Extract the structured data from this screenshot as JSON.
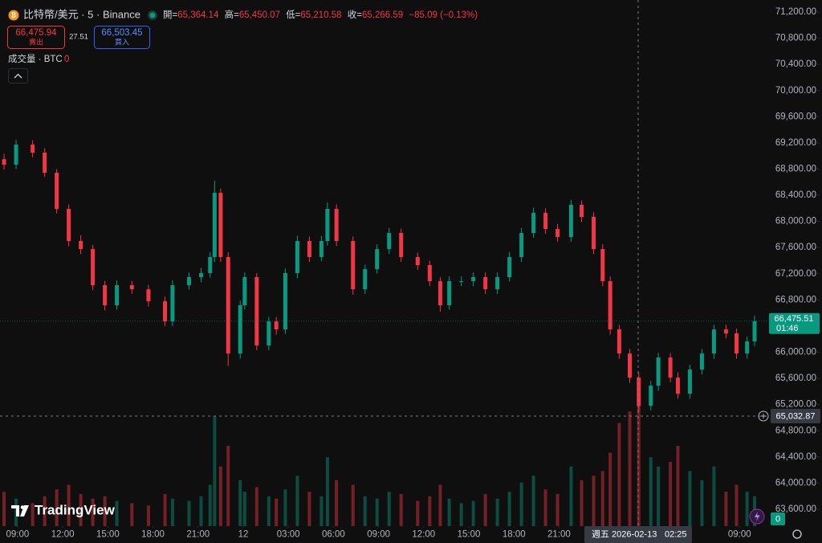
{
  "header": {
    "symbol": "比特幣/美元 · 5 · Binance",
    "ohlc": [
      {
        "label": "開=",
        "value": "65,364.14"
      },
      {
        "label": "高=",
        "value": "65,450.07"
      },
      {
        "label": "低=",
        "value": "65,210.58"
      },
      {
        "label": "收=",
        "value": "65,266.59"
      }
    ],
    "change": "−85.09 (−0.13%)"
  },
  "trade": {
    "sell_price": "66,475.94",
    "sell_label": "賣出",
    "spread": "27.51",
    "buy_price": "66,503.45",
    "buy_label": "買入"
  },
  "volume_legend": {
    "label": "成交量 · BTC",
    "value": "0"
  },
  "price_label": {
    "price": "66,475.51",
    "countdown": "01:46"
  },
  "crosshair": {
    "price": "65,032.87",
    "date": "週五 2026-02-13",
    "time": "02:25"
  },
  "volume_label": "0",
  "logo": "TradingView",
  "chart_data": {
    "type": "candlestick",
    "up_color": "#089981",
    "down_color": "#f23645",
    "xlim": [
      -1.17,
      49.8
    ],
    "ylim": [
      63342,
      71384
    ],
    "volume_ylim": [
      0,
      700
    ],
    "xticks": [
      {
        "value": 0,
        "label": "09:00"
      },
      {
        "value": 3,
        "label": "12:00"
      },
      {
        "value": 6,
        "label": "15:00"
      },
      {
        "value": 9,
        "label": "18:00"
      },
      {
        "value": 12,
        "label": "21:00"
      },
      {
        "value": 15,
        "label": "12"
      },
      {
        "value": 18,
        "label": "03:00"
      },
      {
        "value": 21,
        "label": "06:00"
      },
      {
        "value": 24,
        "label": "09:00"
      },
      {
        "value": 27,
        "label": "12:00"
      },
      {
        "value": 30,
        "label": "15:00"
      },
      {
        "value": 33,
        "label": "18:00"
      },
      {
        "value": 36,
        "label": "21:00"
      },
      {
        "value": 48,
        "label": "09:00"
      }
    ],
    "yticks": [
      {
        "value": 63600,
        "label": "63,600.00"
      },
      {
        "value": 64000,
        "label": "64,000.00"
      },
      {
        "value": 64400,
        "label": "64,400.00"
      },
      {
        "value": 64800,
        "label": "64,800.00"
      },
      {
        "value": 65200,
        "label": "65,200.00"
      },
      {
        "value": 65600,
        "label": "65,600.00"
      },
      {
        "value": 66000,
        "label": "66,000.00"
      },
      {
        "value": 66400,
        "label": "66,400.00"
      },
      {
        "value": 66800,
        "label": "66,800.00"
      },
      {
        "value": 67200,
        "label": "67,200.00"
      },
      {
        "value": 67600,
        "label": "67,600.00"
      },
      {
        "value": 68000,
        "label": "68,000.00"
      },
      {
        "value": 68400,
        "label": "68,400.00"
      },
      {
        "value": 68800,
        "label": "68,800.00"
      },
      {
        "value": 69200,
        "label": "69,200.00"
      },
      {
        "value": 69600,
        "label": "69,600.00"
      },
      {
        "value": 70000,
        "label": "70,000.00"
      },
      {
        "value": 70400,
        "label": "70,400.00"
      },
      {
        "value": 70800,
        "label": "70,800.00"
      },
      {
        "value": 71200,
        "label": "71,200.00"
      }
    ],
    "candles": {
      "x": [
        -0.9,
        -0.1,
        1.0,
        1.8,
        2.6,
        3.4,
        4.2,
        5.0,
        5.8,
        6.6,
        7.6,
        8.7,
        9.8,
        10.3,
        11.4,
        12.2,
        12.8,
        13.1,
        13.5,
        14.0,
        14.8,
        15.1,
        15.9,
        16.7,
        17.2,
        17.8,
        18.6,
        19.4,
        20.2,
        20.6,
        21.2,
        22.3,
        23.1,
        23.9,
        24.7,
        25.5,
        26.6,
        27.4,
        28.1,
        28.7,
        29.5,
        30.3,
        31.1,
        31.9,
        32.7,
        33.5,
        34.3,
        35.1,
        35.9,
        36.8,
        37.5,
        38.3,
        38.9,
        39.4,
        40.0,
        40.7,
        41.3,
        42.1,
        42.6,
        43.4,
        43.9,
        44.7,
        45.5,
        46.3,
        47.1,
        47.8,
        48.5,
        49.0
      ],
      "open": [
        68950,
        68867,
        69174,
        69051,
        68744,
        68191,
        67700,
        67577,
        67025,
        66718,
        67025,
        66963,
        66779,
        66472,
        67025,
        67148,
        67210,
        67455,
        68437,
        67455,
        65981,
        66718,
        67148,
        66104,
        66472,
        66349,
        67210,
        67700,
        67455,
        67700,
        68191,
        67700,
        66963,
        67270,
        67577,
        67823,
        67455,
        67332,
        67086,
        66718,
        67086,
        67086,
        67148,
        66963,
        67148,
        67455,
        67823,
        68130,
        67884,
        67762,
        68253,
        68069,
        67577,
        67086,
        66349,
        65981,
        65612,
        65182,
        65489,
        65920,
        65612,
        65367,
        65735,
        65981,
        66349,
        66288,
        65981,
        66165
      ],
      "high": [
        69030,
        69250,
        69240,
        69120,
        68800,
        68260,
        67790,
        67640,
        67090,
        67100,
        67090,
        67030,
        66850,
        67100,
        67220,
        67290,
        67530,
        68620,
        68500,
        67530,
        66790,
        67220,
        67210,
        66540,
        66540,
        67280,
        67780,
        67770,
        67780,
        68290,
        68260,
        67770,
        67340,
        67650,
        67900,
        67890,
        67520,
        67400,
        67150,
        67160,
        67160,
        67220,
        67220,
        67220,
        67530,
        67900,
        68210,
        68200,
        67960,
        68330,
        68320,
        68140,
        67650,
        67160,
        66420,
        66050,
        65690,
        65560,
        65990,
        65990,
        65690,
        65810,
        66050,
        66420,
        66420,
        66360,
        66240,
        66560
      ],
      "low": [
        68790,
        68800,
        68980,
        68680,
        68120,
        67620,
        67500,
        66950,
        66640,
        66650,
        66890,
        66700,
        66400,
        66400,
        66960,
        67070,
        67140,
        67380,
        67380,
        65790,
        65900,
        66650,
        66030,
        66030,
        66270,
        66280,
        67130,
        67380,
        67390,
        67630,
        67620,
        66880,
        66890,
        67200,
        67500,
        67380,
        67260,
        67010,
        66620,
        66650,
        67010,
        67010,
        66890,
        66890,
        67080,
        67380,
        67750,
        67810,
        67690,
        67690,
        67990,
        67500,
        67010,
        66270,
        65900,
        65530,
        65100,
        65110,
        65410,
        65540,
        65290,
        65290,
        65660,
        65900,
        66210,
        65900,
        65900,
        66090
      ],
      "close": [
        68867,
        69174,
        69051,
        68744,
        68191,
        67700,
        67577,
        67025,
        66718,
        67025,
        66963,
        66779,
        66472,
        67025,
        67148,
        67210,
        67455,
        68437,
        67455,
        65981,
        66718,
        67148,
        66104,
        66472,
        66349,
        67210,
        67700,
        67455,
        67700,
        68191,
        67700,
        66963,
        67270,
        67577,
        67823,
        67455,
        67332,
        67086,
        66718,
        67086,
        67086,
        67148,
        66963,
        67148,
        67455,
        67823,
        68130,
        67884,
        67762,
        68253,
        68069,
        67577,
        67086,
        66349,
        65981,
        65612,
        65182,
        65489,
        65920,
        65612,
        65367,
        65735,
        65981,
        66349,
        66288,
        65981,
        66165,
        66475.51
      ],
      "volume": [
        150,
        120,
        100,
        130,
        160,
        180,
        140,
        120,
        130,
        110,
        100,
        90,
        140,
        120,
        110,
        130,
        180,
        480,
        260,
        350,
        200,
        150,
        170,
        130,
        120,
        160,
        220,
        150,
        130,
        300,
        200,
        180,
        130,
        120,
        150,
        140,
        110,
        130,
        180,
        120,
        100,
        110,
        140,
        120,
        150,
        190,
        220,
        160,
        140,
        260,
        200,
        220,
        240,
        320,
        450,
        500,
        580,
        300,
        260,
        280,
        350,
        240,
        200,
        260,
        150,
        180,
        150,
        130
      ]
    }
  }
}
